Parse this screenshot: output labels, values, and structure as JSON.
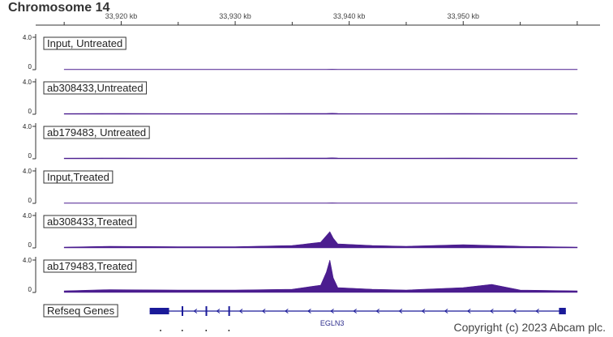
{
  "header": {
    "title": "Chromosome 14"
  },
  "footer": {
    "copyright": "Copyright (c) 2023 Abcam plc."
  },
  "chart_data": {
    "type": "area",
    "x_unit": "kb",
    "x_range": [
      33912.5,
      33962.0
    ],
    "x_ticks": [
      {
        "value": 33920,
        "label": "33,920 kb"
      },
      {
        "value": 33930,
        "label": "33,930 kb"
      },
      {
        "value": 33940,
        "label": "33,940 kb"
      },
      {
        "value": 33950,
        "label": "33,950 kb"
      }
    ],
    "ylim": [
      0,
      4.0
    ],
    "y_tick_labels": [
      "4.0",
      "0"
    ],
    "series_color": "#4b1d8f",
    "gene_color": "#1a1a99",
    "tracks": [
      {
        "name": "Input, Untreated",
        "x": [
          33915,
          33920,
          33925,
          33930,
          33935,
          33938,
          33938.5,
          33939,
          33945,
          33950,
          33955,
          33960
        ],
        "values": [
          0.05,
          0.05,
          0.05,
          0.05,
          0.05,
          0.05,
          0.06,
          0.05,
          0.05,
          0.05,
          0.05,
          0.05
        ]
      },
      {
        "name": "ab308433,Untreated",
        "x": [
          33915,
          33920,
          33925,
          33930,
          33935,
          33938,
          33938.5,
          33939,
          33945,
          33950,
          33955,
          33960
        ],
        "values": [
          0.08,
          0.1,
          0.08,
          0.08,
          0.1,
          0.1,
          0.12,
          0.1,
          0.08,
          0.1,
          0.08,
          0.08
        ]
      },
      {
        "name": "ab179483, Untreated",
        "x": [
          33915,
          33920,
          33925,
          33930,
          33935,
          33938,
          33938.5,
          33939,
          33945,
          33950,
          33955,
          33960
        ],
        "values": [
          0.08,
          0.1,
          0.08,
          0.08,
          0.1,
          0.1,
          0.12,
          0.1,
          0.08,
          0.1,
          0.08,
          0.08
        ]
      },
      {
        "name": "Input,Treated",
        "x": [
          33915,
          33920,
          33925,
          33930,
          33935,
          33938,
          33938.5,
          33939,
          33945,
          33950,
          33955,
          33960
        ],
        "values": [
          0.05,
          0.05,
          0.05,
          0.05,
          0.05,
          0.05,
          0.06,
          0.05,
          0.05,
          0.05,
          0.05,
          0.05
        ]
      },
      {
        "name": "ab308433,Treated",
        "x": [
          33915,
          33919,
          33925,
          33930,
          33935,
          33936,
          33937.5,
          33938,
          33938.3,
          33938.6,
          33939,
          33942,
          33945,
          33950,
          33955,
          33960
        ],
        "values": [
          0.1,
          0.2,
          0.15,
          0.15,
          0.3,
          0.45,
          0.7,
          1.5,
          2.0,
          1.2,
          0.5,
          0.3,
          0.2,
          0.4,
          0.2,
          0.1
        ]
      },
      {
        "name": "ab179483,Treated",
        "x": [
          33915,
          33919,
          33925,
          33930,
          33935,
          33936,
          33937.5,
          33938,
          33938.3,
          33938.6,
          33939,
          33942,
          33945,
          33950,
          33952.5,
          33955,
          33960
        ],
        "values": [
          0.2,
          0.35,
          0.3,
          0.3,
          0.4,
          0.6,
          0.9,
          2.5,
          4.0,
          1.8,
          0.6,
          0.4,
          0.3,
          0.6,
          1.0,
          0.3,
          0.2
        ]
      }
    ],
    "gene_track": {
      "name": "Refseq Genes",
      "gene": "EGLN3",
      "span": [
        33922.5,
        33959.0
      ],
      "exons": [
        [
          33922.5,
          33924.2
        ],
        [
          33925.3,
          33925.4
        ],
        [
          33927.4,
          33927.5
        ],
        [
          33929.4,
          33929.5
        ],
        [
          33958.4,
          33959.0
        ]
      ],
      "strand": "-"
    }
  }
}
